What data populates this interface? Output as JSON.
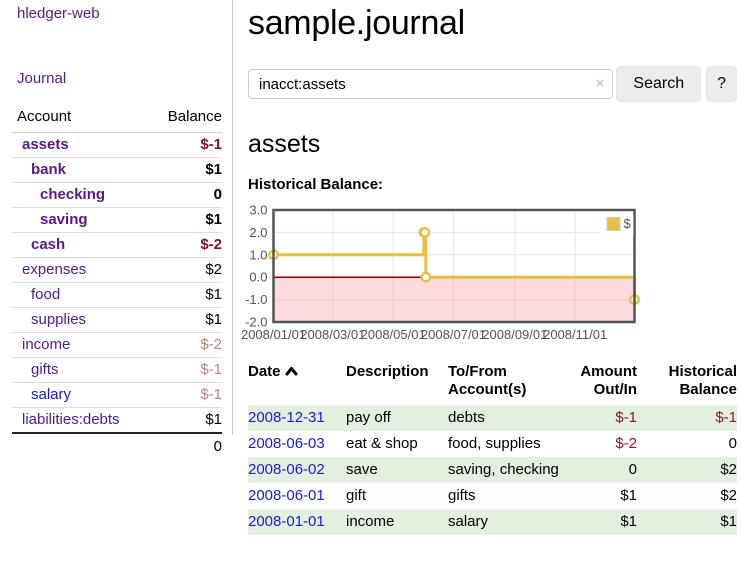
{
  "sidebar": {
    "brand": "hledger-web",
    "nav": {
      "journal_label": "Journal"
    },
    "accounts_table": {
      "col_account": "Account",
      "col_balance": "Balance",
      "rows": [
        {
          "name": "assets",
          "indent": 1,
          "bold": true,
          "balance": "$-1",
          "balance_style": "neg-strong"
        },
        {
          "name": "bank",
          "indent": 2,
          "bold": true,
          "balance": "$1",
          "balance_style": ""
        },
        {
          "name": "checking",
          "indent": 3,
          "bold": true,
          "balance": "0",
          "balance_style": ""
        },
        {
          "name": "saving",
          "indent": 3,
          "bold": true,
          "balance": "$1",
          "balance_style": ""
        },
        {
          "name": "cash",
          "indent": 2,
          "bold": true,
          "balance": "$-2",
          "balance_style": "neg-strong"
        },
        {
          "name": "expenses",
          "indent": 1,
          "bold": false,
          "balance": "$2",
          "balance_style": ""
        },
        {
          "name": "food",
          "indent": 2,
          "bold": false,
          "balance": "$1",
          "balance_style": ""
        },
        {
          "name": "supplies",
          "indent": 2,
          "bold": false,
          "balance": "$1",
          "balance_style": ""
        },
        {
          "name": "income",
          "indent": 1,
          "bold": false,
          "balance": "$-2",
          "balance_style": "neg-soft"
        },
        {
          "name": "gifts",
          "indent": 2,
          "bold": false,
          "balance": "$-1",
          "balance_style": "neg-soft"
        },
        {
          "name": "salary",
          "indent": 2,
          "bold": false,
          "balance": "$-1",
          "balance_style": "neg-soft",
          "link_color": "blue"
        },
        {
          "name": "liabilities:debts",
          "indent": 1,
          "bold": false,
          "balance": "$1",
          "balance_style": ""
        }
      ],
      "total": "0"
    }
  },
  "header": {
    "title": "sample.journal"
  },
  "search": {
    "query": "inacct:assets",
    "clear_icon": "×",
    "button_label": "Search",
    "help_label": "?"
  },
  "account_page": {
    "heading": "assets",
    "chart_title": "Historical Balance:"
  },
  "chart_data": {
    "type": "line",
    "title": "Historical Balance:",
    "step": true,
    "series": [
      {
        "name": "$",
        "color": "#e6c045",
        "points": [
          [
            "2008-01-01",
            1
          ],
          [
            "2008-06-01",
            2
          ],
          [
            "2008-06-02",
            2
          ],
          [
            "2008-06-03",
            0
          ],
          [
            "2008-12-31",
            -1
          ]
        ]
      }
    ],
    "xlim": [
      "2008-01-01",
      "2008-12-31"
    ],
    "ylim": [
      -2,
      3
    ],
    "x_ticks": [
      "2008/01/01",
      "2008/03/01",
      "2008/05/01",
      "2008/07/01",
      "2008/09/01",
      "2008/11/01"
    ],
    "y_ticks": [
      3.0,
      2.0,
      1.0,
      0.0,
      -1.0,
      -2.0
    ],
    "grid_color": "#e6e6e6",
    "axis_text_color": "#545454",
    "border_color": "#545454",
    "zero_line_color": "#8b0000",
    "negative_fill": "rgba(240,150,150,0.35)",
    "legend_position": "top-right",
    "legend_bg": "rgba(255,255,255,0.85)"
  },
  "register_table": {
    "columns": {
      "date": "Date",
      "description": "Description",
      "account": "To/From Account(s)",
      "amount": "Amount Out/In",
      "balance": "Historical Balance"
    },
    "rows": [
      {
        "date": "2008-12-31",
        "description": "pay off",
        "accounts": "debts",
        "amount": "$-1",
        "amount_neg": true,
        "balance": "$-1",
        "balance_neg": true
      },
      {
        "date": "2008-06-03",
        "description": "eat & shop",
        "accounts": "food, supplies",
        "amount": "$-2",
        "amount_neg": true,
        "balance": "0",
        "balance_neg": false
      },
      {
        "date": "2008-06-02",
        "description": "save",
        "accounts": "saving, checking",
        "amount": "0",
        "amount_neg": false,
        "balance": "$2",
        "balance_neg": false
      },
      {
        "date": "2008-06-01",
        "description": "gift",
        "accounts": "gifts",
        "amount": "$1",
        "amount_neg": false,
        "balance": "$2",
        "balance_neg": false
      },
      {
        "date": "2008-01-01",
        "description": "income",
        "accounts": "salary",
        "amount": "$1",
        "amount_neg": false,
        "balance": "$1",
        "balance_neg": false
      }
    ]
  }
}
